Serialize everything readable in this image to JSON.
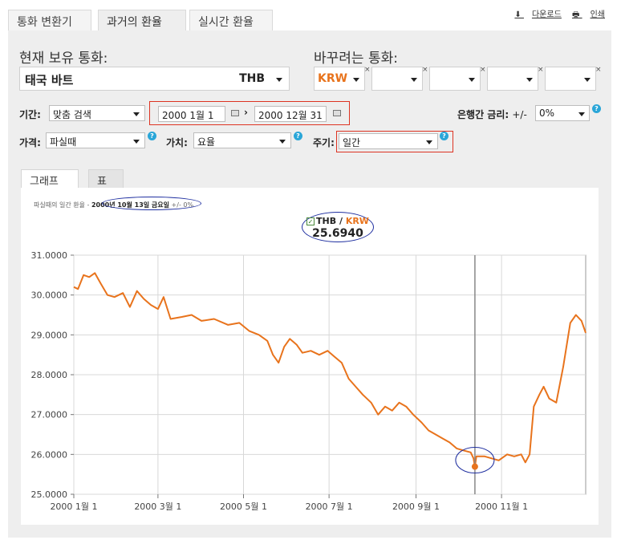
{
  "tabs": [
    "통화 변환기",
    "과거의 환율",
    "실시간 환율"
  ],
  "top_links": {
    "download": "다운로드",
    "print": "인쇄"
  },
  "labels": {
    "from": "현재 보유 통화:",
    "to": "바꾸려는 통화:",
    "period": "기간:",
    "interbank": "은행간 금리:",
    "price": "가격:",
    "value": "가치:",
    "frequency": "주기:"
  },
  "from_currency": {
    "name": "태국 바트",
    "code": "THB"
  },
  "to_currencies": [
    "KRW",
    "",
    "",
    "",
    ""
  ],
  "period_select": "맞춤 검색",
  "date_start": "2000 1월 1",
  "date_end": "2000 12월 31",
  "interbank_pm": "+/-",
  "interbank_value": "0%",
  "price_select": "파실때",
  "value_select": "요율",
  "frequency_select": "일간",
  "chart_tabs": [
    "그래프",
    "표"
  ],
  "info": {
    "prefix": "파실때의 일간 환율 -",
    "date": "2000년 10월 13일 금요일",
    "suffix": "+/- 0%"
  },
  "legend": {
    "base": "THB",
    "sep": " / ",
    "quote": "KRW",
    "value": "25.6940"
  },
  "colors": {
    "series": "#e8731c",
    "accent_red": "#dd3322",
    "oval": "#1f2fa0",
    "panel": "#eeeeee"
  },
  "chart_data": {
    "type": "line",
    "title": "",
    "xlabel": "",
    "ylabel": "",
    "x_start": "2000-01-01",
    "x_end": "2000-12-31",
    "ylim": [
      25.0,
      31.0
    ],
    "y_ticks": [
      "31.0000",
      "30.0000",
      "29.0000",
      "28.0000",
      "27.0000",
      "26.0000",
      "25.0000"
    ],
    "x_ticks": [
      "2000 1월 1",
      "2000 3월 1",
      "2000 5월 1",
      "2000 7월 1",
      "2000 9월 1",
      "2000 11월 1"
    ],
    "x_tick_dates": [
      "2000-01-01",
      "2000-03-01",
      "2000-05-01",
      "2000-07-01",
      "2000-09-01",
      "2000-11-01"
    ],
    "grid": "vertical+horizontal",
    "highlight": {
      "date": "2000-10-13",
      "value": 25.694
    },
    "series": [
      {
        "name": "THB / KRW",
        "points": [
          [
            "2000-01-01",
            30.2
          ],
          [
            "2000-01-04",
            30.15
          ],
          [
            "2000-01-08",
            30.5
          ],
          [
            "2000-01-12",
            30.45
          ],
          [
            "2000-01-16",
            30.55
          ],
          [
            "2000-01-20",
            30.3
          ],
          [
            "2000-01-25",
            30.0
          ],
          [
            "2000-01-30",
            29.95
          ],
          [
            "2000-02-05",
            30.05
          ],
          [
            "2000-02-10",
            29.7
          ],
          [
            "2000-02-15",
            30.1
          ],
          [
            "2000-02-20",
            29.9
          ],
          [
            "2000-02-25",
            29.75
          ],
          [
            "2000-03-01",
            29.65
          ],
          [
            "2000-03-05",
            29.95
          ],
          [
            "2000-03-10",
            29.4
          ],
          [
            "2000-03-18",
            29.45
          ],
          [
            "2000-03-25",
            29.5
          ],
          [
            "2000-04-01",
            29.35
          ],
          [
            "2000-04-10",
            29.4
          ],
          [
            "2000-04-20",
            29.25
          ],
          [
            "2000-04-28",
            29.3
          ],
          [
            "2000-05-05",
            29.1
          ],
          [
            "2000-05-12",
            29.0
          ],
          [
            "2000-05-18",
            28.85
          ],
          [
            "2000-05-22",
            28.5
          ],
          [
            "2000-05-26",
            28.3
          ],
          [
            "2000-05-30",
            28.7
          ],
          [
            "2000-06-03",
            28.9
          ],
          [
            "2000-06-08",
            28.75
          ],
          [
            "2000-06-12",
            28.55
          ],
          [
            "2000-06-18",
            28.6
          ],
          [
            "2000-06-24",
            28.5
          ],
          [
            "2000-06-30",
            28.6
          ],
          [
            "2000-07-05",
            28.45
          ],
          [
            "2000-07-10",
            28.3
          ],
          [
            "2000-07-15",
            27.9
          ],
          [
            "2000-07-20",
            27.7
          ],
          [
            "2000-07-25",
            27.5
          ],
          [
            "2000-07-31",
            27.3
          ],
          [
            "2000-08-05",
            27.0
          ],
          [
            "2000-08-10",
            27.2
          ],
          [
            "2000-08-15",
            27.1
          ],
          [
            "2000-08-20",
            27.3
          ],
          [
            "2000-08-25",
            27.2
          ],
          [
            "2000-08-30",
            27.0
          ],
          [
            "2000-09-05",
            26.8
          ],
          [
            "2000-09-10",
            26.6
          ],
          [
            "2000-09-15",
            26.5
          ],
          [
            "2000-09-20",
            26.4
          ],
          [
            "2000-09-25",
            26.3
          ],
          [
            "2000-09-30",
            26.15
          ],
          [
            "2000-10-05",
            26.1
          ],
          [
            "2000-10-10",
            26.05
          ],
          [
            "2000-10-12",
            25.9
          ],
          [
            "2000-10-13",
            25.694
          ],
          [
            "2000-10-14",
            25.95
          ],
          [
            "2000-10-20",
            25.95
          ],
          [
            "2000-10-25",
            25.9
          ],
          [
            "2000-10-30",
            25.85
          ],
          [
            "2000-11-05",
            26.0
          ],
          [
            "2000-11-10",
            25.95
          ],
          [
            "2000-11-15",
            26.0
          ],
          [
            "2000-11-18",
            25.8
          ],
          [
            "2000-11-21",
            26.0
          ],
          [
            "2000-11-24",
            27.2
          ],
          [
            "2000-11-28",
            27.5
          ],
          [
            "2000-12-01",
            27.7
          ],
          [
            "2000-12-05",
            27.4
          ],
          [
            "2000-12-10",
            27.3
          ],
          [
            "2000-12-15",
            28.2
          ],
          [
            "2000-12-20",
            29.3
          ],
          [
            "2000-12-24",
            29.5
          ],
          [
            "2000-12-28",
            29.35
          ],
          [
            "2000-12-31",
            29.05
          ]
        ]
      }
    ]
  }
}
